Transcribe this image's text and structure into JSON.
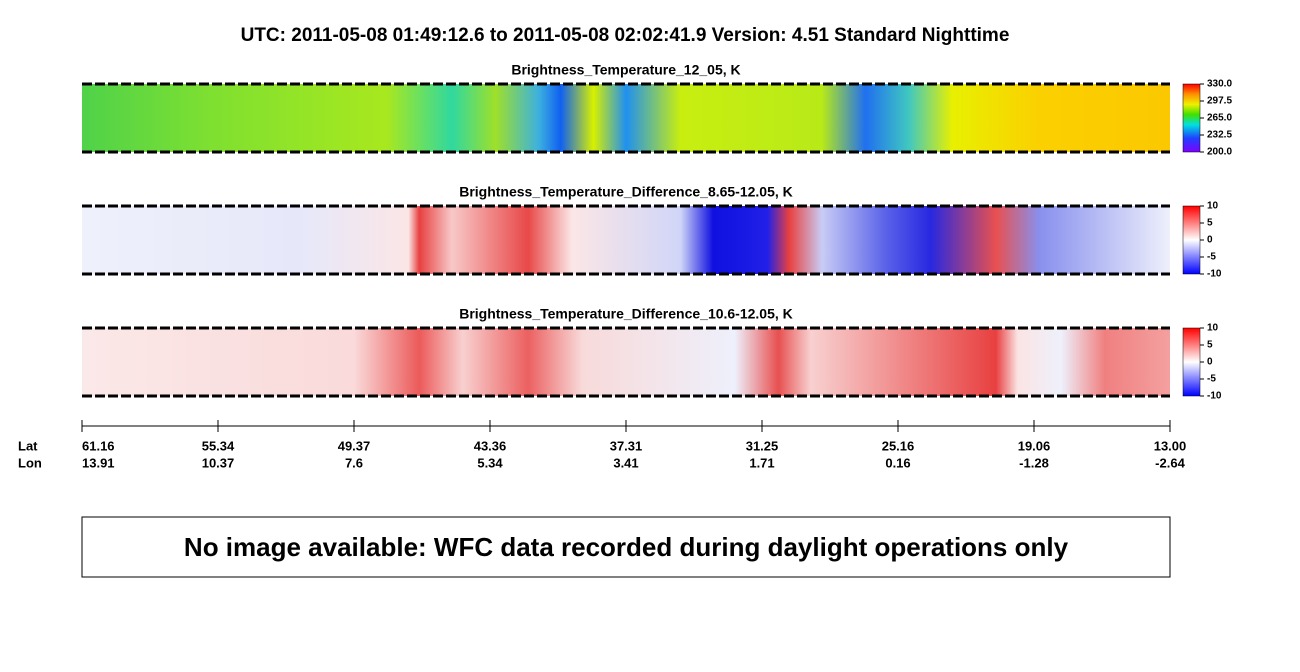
{
  "title": "UTC:  2011-05-08   01:49:12.6  to  2011-05-08   02:02:41.9    Version: 4.51  Standard Nighttime",
  "panels": [
    {
      "title": "Brightness_Temperature_12_05, K",
      "colorbar": {
        "lim": [
          200,
          330
        ],
        "ticks": [
          {
            "value": 330,
            "label": "330.0"
          },
          {
            "value": 297.5,
            "label": "297.5"
          },
          {
            "value": 265,
            "label": "265.0"
          },
          {
            "value": 232.5,
            "label": "232.5"
          },
          {
            "value": 200,
            "label": "200.0"
          }
        ]
      }
    },
    {
      "title": "Brightness_Temperature_Difference_8.65-12.05, K",
      "colorbar": {
        "lim": [
          -10,
          10
        ],
        "ticks": [
          10,
          5,
          0,
          -5,
          -10
        ]
      }
    },
    {
      "title": "Brightness_Temperature_Difference_10.6-12.05, K",
      "colorbar": {
        "lim": [
          -10,
          10
        ],
        "ticks": [
          10,
          5,
          0,
          -5,
          -10
        ]
      }
    }
  ],
  "axis": {
    "lat_label": "Lat",
    "lon_label": "Lon",
    "lat": [
      61.16,
      55.34,
      49.37,
      43.36,
      37.31,
      31.25,
      25.16,
      19.06,
      {
        "value": 13,
        "label": "13.00"
      }
    ],
    "lon": [
      13.91,
      10.37,
      7.6,
      5.34,
      3.41,
      1.71,
      0.16,
      -1.28,
      -2.64
    ]
  },
  "message": "No image available: WFC data recorded during daylight operations only"
}
